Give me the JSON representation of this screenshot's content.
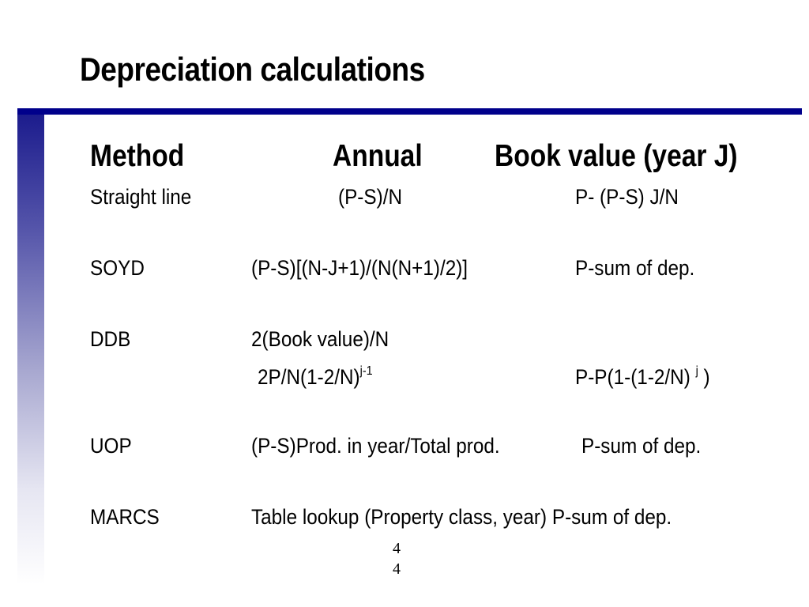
{
  "title": "Depreciation calculations",
  "headers": {
    "method": "Method",
    "annual": "Annual",
    "book_value": "Book value (year J)"
  },
  "rows": {
    "straight_line": {
      "method": "Straight line",
      "annual": "(P-S)/N",
      "book_value": "P- (P-S) J/N"
    },
    "soyd": {
      "method": "SOYD",
      "annual": "(P-S)[(N-J+1)/(N(N+1)/2)]",
      "book_value": "P-sum of dep."
    },
    "ddb": {
      "method": "DDB",
      "annual": "2(Book value)/N",
      "annual_alt": "2P/N(1-2/N)",
      "annual_alt_exp": "j-1",
      "book_value_pre": "P-P(1-(1-2/N)",
      "book_value_exp": "j",
      "book_value_post": ")"
    },
    "uop": {
      "method": "UOP",
      "annual": "(P-S)Prod. in year/Total prod.",
      "book_value": "P-sum of dep."
    },
    "marcs": {
      "method": "MARCS",
      "annual": "Table lookup (Property class, year) P-sum of dep."
    }
  },
  "page_number": {
    "line1": "4",
    "line2": "4"
  },
  "colors": {
    "accent": "#00008b",
    "text": "#000000",
    "background": "#ffffff"
  }
}
